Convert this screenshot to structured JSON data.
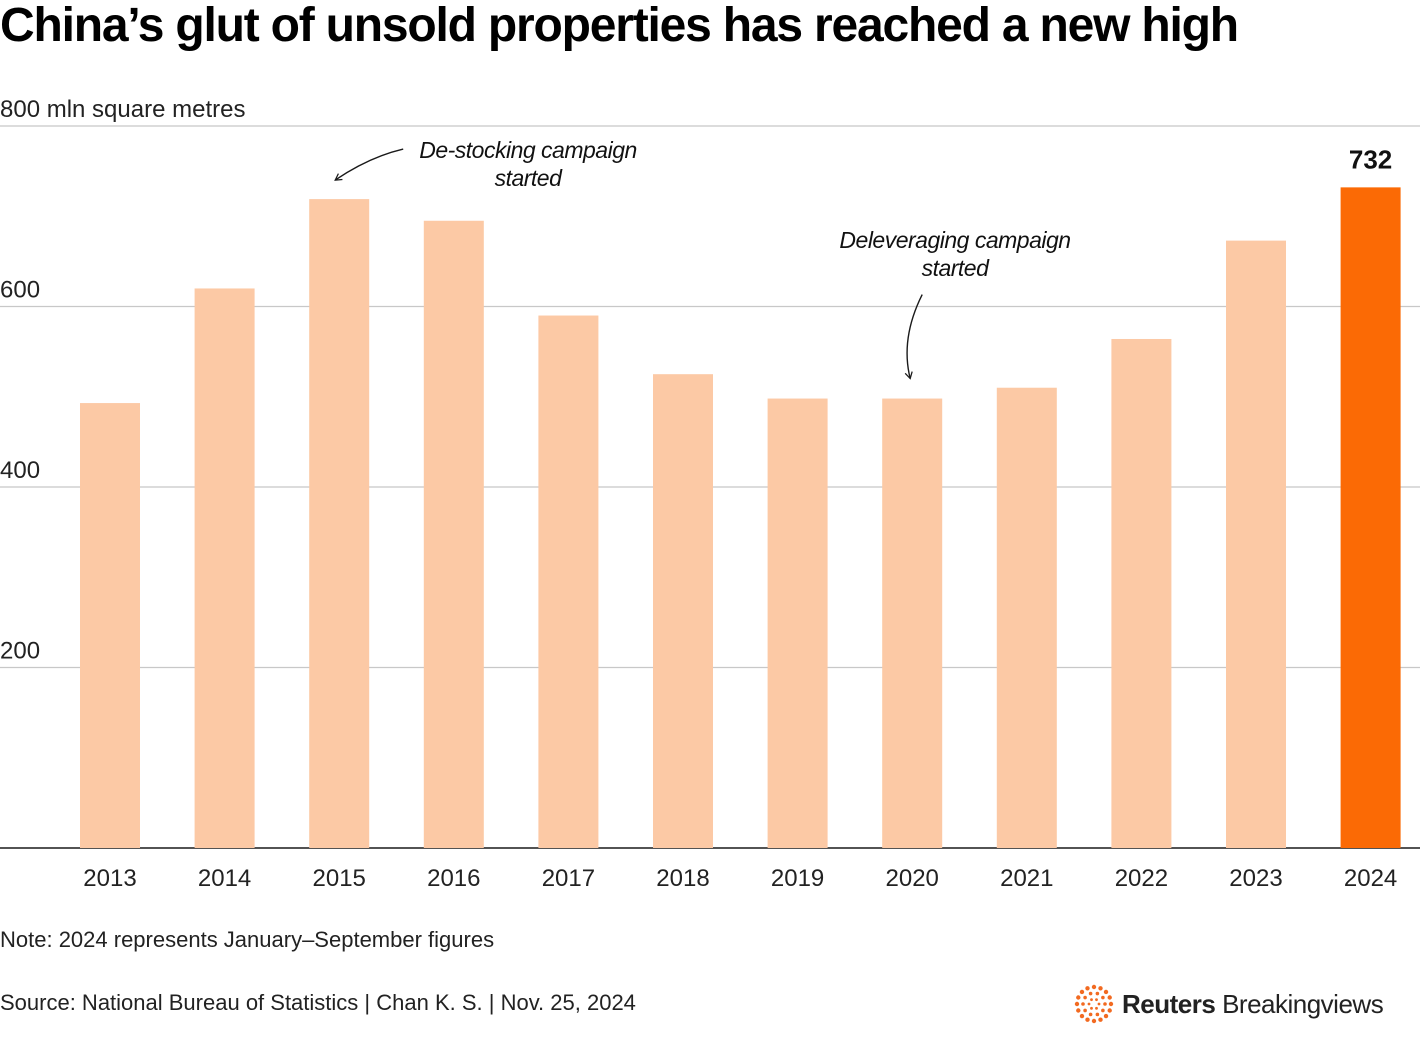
{
  "title": "China’s glut of unsold properties has reached a new high",
  "note": "Note: 2024 represents January–September figures",
  "source": "Source: National Bureau of Statistics | Chan K. S. | Nov. 25, 2024",
  "logo": {
    "brand": "Reuters",
    "product": "Breakingviews",
    "icon": "reuters-dots-icon"
  },
  "colors": {
    "bar": "#fcc9a5",
    "highlight": "#fb6a05",
    "grid": "#c8c8c8",
    "axis": "#1a1a1a",
    "logo_dots": "#f26a21"
  },
  "chart_data": {
    "type": "bar",
    "title": "China’s glut of unsold properties has reached a new high",
    "ylabel": "800 mln square metres",
    "xlabel": "",
    "ylim": [
      0,
      800
    ],
    "yticks": [
      200,
      400,
      600,
      800
    ],
    "ytick_labels": [
      "200",
      "400",
      "600",
      "800 mln square metres"
    ],
    "grid": true,
    "categories": [
      "2013",
      "2014",
      "2015",
      "2016",
      "2017",
      "2018",
      "2019",
      "2020",
      "2021",
      "2022",
      "2023",
      "2024"
    ],
    "values": [
      493,
      620,
      719,
      695,
      590,
      525,
      498,
      498,
      510,
      564,
      673,
      732
    ],
    "highlight_index": 11,
    "data_labels": [
      {
        "category": "2024",
        "text": "732"
      }
    ],
    "annotations": [
      {
        "lines": [
          "De-stocking campaign",
          "started"
        ],
        "target": "2015"
      },
      {
        "lines": [
          "Deleveraging campaign",
          "started"
        ],
        "target": "2020"
      }
    ]
  }
}
